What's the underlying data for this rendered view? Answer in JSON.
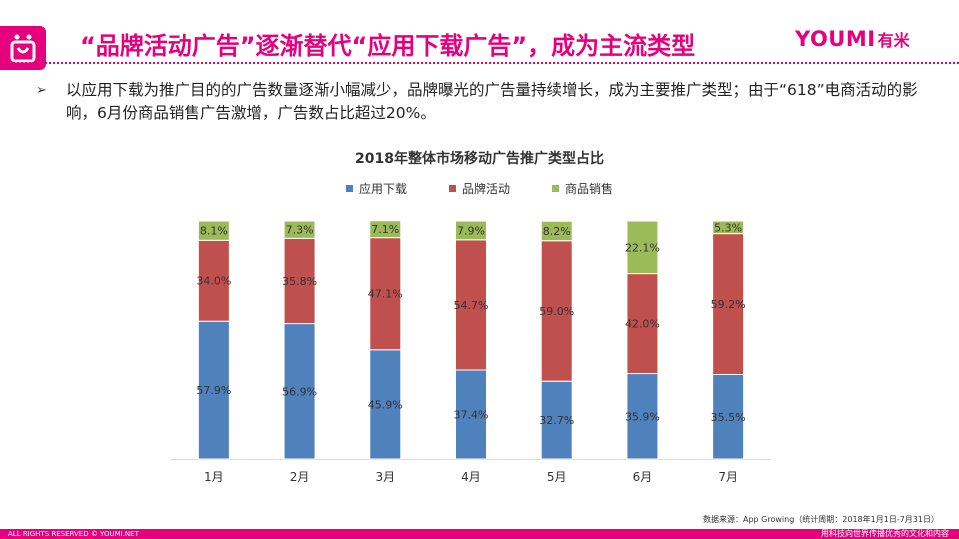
{
  "header": {
    "title": "“品牌活动广告”逐渐替代“应用下载广告”，成为主流类型",
    "brand_en": "YOUMI",
    "brand_cn": "有米"
  },
  "summary": {
    "text": "以应用下载为推广目的的广告数量逐渐小幅减少，品牌曝光的广告量持续增长，成为主要推广类型；由于“618”电商活动的影响，6月份商品销售广告激增，广告数占比超过20%。"
  },
  "chart_data": {
    "type": "bar",
    "stacked": true,
    "title": "2018年整体市场移动广告推广类型占比",
    "categories": [
      "1月",
      "2月",
      "3月",
      "4月",
      "5月",
      "6月",
      "7月"
    ],
    "series": [
      {
        "name": "应用下载",
        "color": "#4f81bd",
        "values": [
          57.9,
          56.9,
          45.9,
          37.4,
          32.7,
          35.9,
          35.5
        ]
      },
      {
        "name": "品牌活动",
        "color": "#c0504d",
        "values": [
          34.0,
          35.8,
          47.1,
          54.7,
          59.0,
          42.0,
          59.2
        ]
      },
      {
        "name": "商品销售",
        "color": "#9bbb59",
        "values": [
          8.1,
          7.3,
          7.1,
          7.9,
          8.2,
          22.1,
          5.3
        ]
      }
    ],
    "ylim": [
      0,
      100
    ],
    "value_suffix": "%",
    "legend_position": "top",
    "grid": false
  },
  "source": {
    "text": "数据来源：App Growing（统计周期：2018年1月1日-7月31日）"
  },
  "footer": {
    "left": "ALL RIGHTS RESERVED © YOUMI.NET",
    "right": "用科技向世界传播优秀的文化和内容"
  }
}
